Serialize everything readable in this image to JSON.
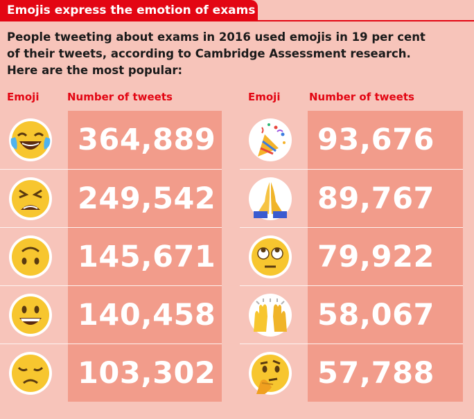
{
  "title": "Emojis express the emotion of exams",
  "intro": [
    "People tweeting about exams in 2016 used emojis in 19 per cent",
    "of their tweets, according to Cambridge Assessment research.",
    "Here are the most popular:"
  ],
  "columns": {
    "emoji": "Emoji",
    "count": "Number of tweets"
  },
  "colors": {
    "accent": "#e30613",
    "background": "#f7c4ba",
    "cell": "#f29c8b",
    "emoji_yellow": "#f7c62f"
  },
  "chart_data": {
    "type": "table",
    "title": "Emojis express the emotion of exams",
    "columns": [
      "Emoji",
      "Number of tweets"
    ],
    "rows": [
      {
        "emoji": "face-with-tears-of-joy",
        "value": "364,889"
      },
      {
        "emoji": "tired-face",
        "value": "249,542"
      },
      {
        "emoji": "upside-down-face",
        "value": "145,671"
      },
      {
        "emoji": "grinning-face",
        "value": "140,458"
      },
      {
        "emoji": "disappointed-face",
        "value": "103,302"
      },
      {
        "emoji": "party-popper",
        "value": "93,676"
      },
      {
        "emoji": "folded-hands",
        "value": "89,767"
      },
      {
        "emoji": "face-with-rolling-eyes",
        "value": "79,922"
      },
      {
        "emoji": "raising-hands",
        "value": "58,067"
      },
      {
        "emoji": "thinking-face",
        "value": "57,788"
      }
    ]
  }
}
